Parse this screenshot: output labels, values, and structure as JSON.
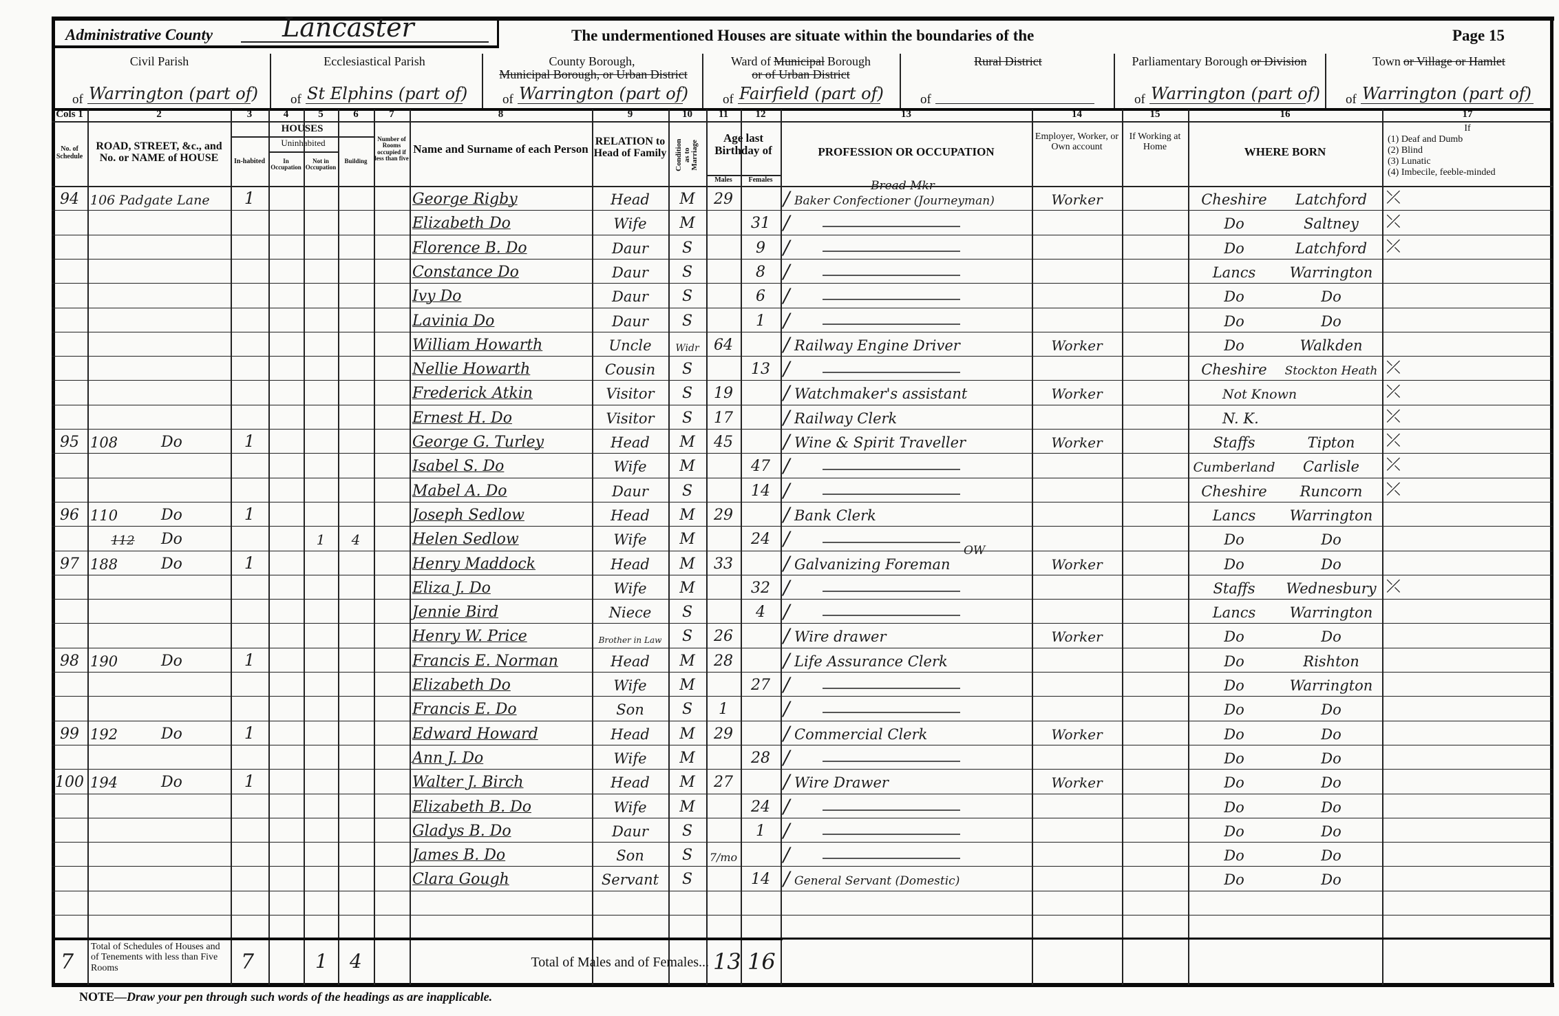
{
  "document": {
    "admin_county_label": "Administrative County",
    "admin_county_value": "Lancaster",
    "heading": "The undermentioned Houses are situate within the boundaries of the",
    "page_label": "Page 15",
    "note_prefix": "NOTE—",
    "note_text": "Draw your pen through such words of the headings as are inapplicable."
  },
  "districts": [
    {
      "label": "Civil Parish",
      "struck": "",
      "of": "of",
      "value": "Warrington (part of)"
    },
    {
      "label": "Ecclesiastical Parish",
      "struck": "",
      "of": "of",
      "value": "St Elphins (part of)"
    },
    {
      "label": "County Borough,",
      "struck": "Municipal Borough, or Urban District",
      "of": "of",
      "value": "Warrington (part of)"
    },
    {
      "label": "Ward of",
      "struck": "Municipal",
      "label2": "Borough",
      "struck2": "or of Urban District",
      "of": "of",
      "value": "Fairfield (part of)"
    },
    {
      "label": "",
      "struck": "Rural District",
      "of": "of",
      "value": ""
    },
    {
      "label": "Parliamentary Borough",
      "struck": "or Division",
      "of": "of",
      "value": "Warrington (part of)"
    },
    {
      "label": "Town",
      "struck": "or Village or Hamlet",
      "of": "of",
      "value": "Warrington (part of)"
    }
  ],
  "col_numbers": [
    "Cols 1",
    "2",
    "3",
    "4",
    "5",
    "6",
    "7",
    "8",
    "9",
    "10",
    "11",
    "12",
    "13",
    "14",
    "15",
    "16",
    "17"
  ],
  "headers": {
    "schedule": "No. of Schedule",
    "road": "ROAD, STREET, &c., and No. or NAME of HOUSE",
    "houses": "HOUSES",
    "uninhabited": "Uninhabited",
    "inhabited": "In-habited",
    "in_occupation": "In Occupation",
    "not_in_occupation": "Not in Occupation",
    "building": "Building",
    "rooms": "Number of Rooms occupied if less than five",
    "name": "Name and Surname of each Person",
    "relation": "RELATION to Head of Family",
    "condition": "Condition as to Marriage",
    "age": "Age last Birthday of",
    "males": "Males",
    "females": "Females",
    "occupation": "PROFESSION OR OCCUPATION",
    "employer": "Employer, Worker, or Own account",
    "home": "If Working at Home",
    "born": "WHERE BORN",
    "infirmity_if": "If",
    "infirmity": [
      "(1) Deaf and Dumb",
      "(2) Blind",
      "(3) Lunatic",
      "(4) Imbecile, feeble-minded"
    ]
  },
  "rows": [
    {
      "sch": "94",
      "no": "106 Padgate Lane",
      "street": "",
      "inh": "1",
      "name": "George Rigby",
      "rel": "Head",
      "cond": "M",
      "m": "29",
      "f": "",
      "occ": "Baker Confectioner (Journeyman)",
      "occ_note": "Bread Mkr",
      "emp": "Worker",
      "county": "Cheshire",
      "town": "Latchford",
      "mark": true
    },
    {
      "name": "Elizabeth  Do",
      "rel": "Wife",
      "cond": "M",
      "m": "",
      "f": "31",
      "occ": "",
      "county": "Do",
      "town": "Saltney",
      "mark": true
    },
    {
      "name": "Florence B.  Do",
      "rel": "Daur",
      "cond": "S",
      "f": "9",
      "county": "Do",
      "town": "Latchford",
      "mark": true
    },
    {
      "name": "Constance  Do",
      "rel": "Daur",
      "cond": "S",
      "f": "8",
      "county": "Lancs",
      "town": "Warrington"
    },
    {
      "name": "Ivy     Do",
      "rel": "Daur",
      "cond": "S",
      "f": "6",
      "county": "Do",
      "town": "Do"
    },
    {
      "name": "Lavinia   Do",
      "rel": "Daur",
      "cond": "S",
      "f": "1",
      "county": "Do",
      "town": "Do"
    },
    {
      "name": "William  Howarth",
      "rel": "Uncle",
      "cond": "Widr",
      "m": "64",
      "occ": "Railway Engine Driver",
      "emp": "Worker",
      "county": "Do",
      "town": "Walkden"
    },
    {
      "name": "Nellie  Howarth",
      "rel": "Cousin",
      "cond": "S",
      "f": "13",
      "county": "Cheshire",
      "town": "Stockton Heath",
      "mark": true
    },
    {
      "name": "Frederick  Atkin",
      "rel": "Visitor",
      "cond": "S",
      "m": "19",
      "occ": "Watchmaker's assistant",
      "emp": "Worker",
      "county": "Not Known",
      "town": "",
      "mark": true
    },
    {
      "name": "Ernest H.  Do",
      "rel": "Visitor",
      "cond": "S",
      "m": "17",
      "occ": "Railway Clerk",
      "county": "N. K.",
      "town": "",
      "mark": true
    },
    {
      "sch": "95",
      "no": "108",
      "street": "Do",
      "inh": "1",
      "name": "George G. Turley",
      "rel": "Head",
      "cond": "M",
      "m": "45",
      "occ": "Wine & Spirit Traveller",
      "emp": "Worker",
      "county": "Staffs",
      "town": "Tipton",
      "mark": true
    },
    {
      "name": "Isabel S.   Do",
      "rel": "Wife",
      "cond": "M",
      "f": "47",
      "county": "Cumberland",
      "town": "Carlisle",
      "mark": true
    },
    {
      "name": "Mabel A.   Do",
      "rel": "Daur",
      "cond": "S",
      "f": "14",
      "county": "Cheshire",
      "town": "Runcorn",
      "mark": true
    },
    {
      "sch": "96",
      "no": "110",
      "street": "Do",
      "inh": "1",
      "name": "Joseph Sedlow",
      "rel": "Head",
      "cond": "M",
      "m": "29",
      "occ": "Bank Clerk",
      "county": "Lancs",
      "town": "Warrington"
    },
    {
      "no_struck": "112",
      "street": "Do",
      "notocc": "1",
      "building": "4",
      "name": "Helen Sedlow",
      "rel": "Wife",
      "cond": "M",
      "f": "24",
      "county": "Do",
      "town": "Do"
    },
    {
      "sch": "97",
      "no": "188",
      "street": "Do",
      "inh": "1",
      "name": "Henry Maddock",
      "rel": "Head",
      "cond": "M",
      "m": "33",
      "occ": "Galvanizing Foreman",
      "occ_note": "OW",
      "emp": "Worker",
      "county": "Do",
      "town": "Do"
    },
    {
      "name": "Eliza J.   Do",
      "rel": "Wife",
      "cond": "M",
      "f": "32",
      "county": "Staffs",
      "town": "Wednesbury",
      "mark": true
    },
    {
      "name": "Jennie   Bird",
      "rel": "Niece",
      "cond": "S",
      "f": "4",
      "county": "Lancs",
      "town": "Warrington"
    },
    {
      "name": "Henry W.  Price",
      "rel": "Brother in Law",
      "cond": "S",
      "m": "26",
      "occ": "Wire drawer",
      "emp": "Worker",
      "county": "Do",
      "town": "Do"
    },
    {
      "sch": "98",
      "no": "190",
      "street": "Do",
      "inh": "1",
      "name": "Francis E. Norman",
      "rel": "Head",
      "cond": "M",
      "m": "28",
      "occ": "Life Assurance Clerk",
      "county": "Do",
      "town": "Rishton"
    },
    {
      "name": "Elizabeth   Do",
      "rel": "Wife",
      "cond": "M",
      "f": "27",
      "county": "Do",
      "town": "Warrington"
    },
    {
      "name": "Francis E.   Do",
      "rel": "Son",
      "cond": "S",
      "m": "1",
      "county": "Do",
      "town": "Do"
    },
    {
      "sch": "99",
      "no": "192",
      "street": "Do",
      "inh": "1",
      "name": "Edward Howard",
      "rel": "Head",
      "cond": "M",
      "m": "29",
      "occ": "Commercial Clerk",
      "emp": "Worker",
      "county": "Do",
      "town": "Do"
    },
    {
      "name": "Ann J.   Do",
      "rel": "Wife",
      "cond": "M",
      "f": "28",
      "county": "Do",
      "town": "Do"
    },
    {
      "sch": "100",
      "no": "194",
      "street": "Do",
      "inh": "1",
      "name": "Walter J. Birch",
      "rel": "Head",
      "cond": "M",
      "m": "27",
      "occ": "Wire Drawer",
      "emp": "Worker",
      "county": "Do",
      "town": "Do"
    },
    {
      "name": "Elizabeth B. Do",
      "rel": "Wife",
      "cond": "M",
      "f": "24",
      "county": "Do",
      "town": "Do"
    },
    {
      "name": "Gladys B.  Do",
      "rel": "Daur",
      "cond": "S",
      "f": "1",
      "county": "Do",
      "town": "Do"
    },
    {
      "name": "James B.   Do",
      "rel": "Son",
      "cond": "S",
      "m": "7/mo",
      "county": "Do",
      "town": "Do"
    },
    {
      "name": "Clara  Gough",
      "rel": "Servant",
      "cond": "S",
      "f": "14",
      "occ": "General Servant (Domestic)",
      "county": "Do",
      "town": "Do"
    }
  ],
  "totals": {
    "schedules": "7",
    "schedules_label": "Total of Schedules of Houses and of Tenements with less than Five Rooms",
    "inhabited": "7",
    "not_in_occupation": "1",
    "building": "4",
    "persons_label": "Total of Males and of Females...",
    "males": "13",
    "females": "16"
  }
}
